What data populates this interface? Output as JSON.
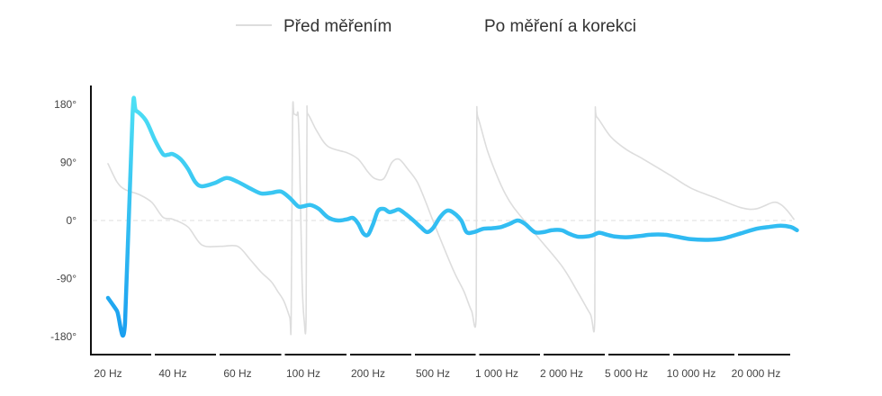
{
  "chart_data": {
    "type": "line",
    "title": "",
    "xlabel": "",
    "ylabel": "",
    "x_scale": "log",
    "x_ticks": [
      {
        "value": 20,
        "label": "20 Hz"
      },
      {
        "value": 40,
        "label": "40 Hz"
      },
      {
        "value": 60,
        "label": "60 Hz"
      },
      {
        "value": 100,
        "label": "100 Hz"
      },
      {
        "value": 200,
        "label": "200 Hz"
      },
      {
        "value": 500,
        "label": "500 Hz"
      },
      {
        "value": 1000,
        "label": "1 000 Hz"
      },
      {
        "value": 2000,
        "label": "2 000 Hz"
      },
      {
        "value": 5000,
        "label": "5 000 Hz"
      },
      {
        "value": 10000,
        "label": "10 000 Hz"
      },
      {
        "value": 20000,
        "label": "20 000 Hz"
      }
    ],
    "y_ticks": [
      {
        "value": 180,
        "label": "180°"
      },
      {
        "value": 90,
        "label": "90°"
      },
      {
        "value": 0,
        "label": "0°"
      },
      {
        "value": -90,
        "label": "-90°"
      },
      {
        "value": -180,
        "label": "-180°"
      }
    ],
    "ylim": [
      -200,
      200
    ],
    "zero_line": "dashed",
    "legend_position": "top-center",
    "series": [
      {
        "name": "Před měřením",
        "color": "#dddddd",
        "style": "thin",
        "points": [
          [
            20,
            88
          ],
          [
            22,
            60
          ],
          [
            24,
            48
          ],
          [
            28,
            40
          ],
          [
            32,
            28
          ],
          [
            36,
            5
          ],
          [
            40,
            2
          ],
          [
            44,
            -10
          ],
          [
            48,
            -38
          ],
          [
            54,
            -40
          ],
          [
            60,
            -40
          ],
          [
            66,
            -60
          ],
          [
            72,
            -80
          ],
          [
            78,
            -95
          ],
          [
            82,
            -110
          ],
          [
            86,
            -125
          ],
          [
            90,
            -150
          ],
          [
            91,
            -155
          ],
          [
            92,
            160
          ],
          [
            93,
            165
          ],
          [
            95,
            163
          ],
          [
            96,
            165
          ],
          [
            97,
            110
          ],
          [
            99,
            -90
          ],
          [
            101,
            -155
          ],
          [
            103,
            -150
          ],
          [
            104,
            150
          ],
          [
            105,
            165
          ],
          [
            115,
            140
          ],
          [
            130,
            115
          ],
          [
            160,
            105
          ],
          [
            180,
            95
          ],
          [
            200,
            75
          ],
          [
            220,
            65
          ],
          [
            250,
            65
          ],
          [
            280,
            90
          ],
          [
            310,
            95
          ],
          [
            350,
            80
          ],
          [
            400,
            60
          ],
          [
            450,
            30
          ],
          [
            500,
            0
          ],
          [
            560,
            -40
          ],
          [
            630,
            -80
          ],
          [
            700,
            -110
          ],
          [
            760,
            -140
          ],
          [
            800,
            -145
          ],
          [
            805,
            150
          ],
          [
            815,
            160
          ],
          [
            900,
            110
          ],
          [
            1000,
            70
          ],
          [
            1100,
            40
          ],
          [
            1200,
            20
          ],
          [
            1500,
            -20
          ],
          [
            2000,
            -70
          ],
          [
            2500,
            -110
          ],
          [
            3000,
            -145
          ],
          [
            3200,
            -152
          ],
          [
            3220,
            150
          ],
          [
            3300,
            160
          ],
          [
            4000,
            130
          ],
          [
            5000,
            110
          ],
          [
            6000,
            95
          ],
          [
            8000,
            70
          ],
          [
            10000,
            50
          ],
          [
            13000,
            35
          ],
          [
            17000,
            20
          ],
          [
            20000,
            18
          ],
          [
            24000,
            28
          ],
          [
            26000,
            25
          ],
          [
            28000,
            15
          ],
          [
            30000,
            2
          ]
        ]
      },
      {
        "name": "Po měření a korekci",
        "color_start": "#1a9ff0",
        "color_end": "#4ee0f4",
        "style": "thick",
        "points": [
          [
            20,
            -120
          ],
          [
            22,
            -140
          ],
          [
            24,
            -160
          ],
          [
            26,
            165
          ],
          [
            27,
            170
          ],
          [
            30,
            155
          ],
          [
            33,
            125
          ],
          [
            36,
            103
          ],
          [
            38,
            102
          ],
          [
            40,
            103
          ],
          [
            42,
            95
          ],
          [
            44,
            80
          ],
          [
            46,
            60
          ],
          [
            48,
            53
          ],
          [
            52,
            58
          ],
          [
            56,
            66
          ],
          [
            60,
            60
          ],
          [
            66,
            50
          ],
          [
            72,
            42
          ],
          [
            78,
            43
          ],
          [
            84,
            45
          ],
          [
            90,
            35
          ],
          [
            96,
            22
          ],
          [
            100,
            22
          ],
          [
            108,
            24
          ],
          [
            118,
            18
          ],
          [
            130,
            5
          ],
          [
            145,
            0
          ],
          [
            160,
            2
          ],
          [
            170,
            4
          ],
          [
            180,
            -5
          ],
          [
            190,
            -20
          ],
          [
            200,
            -22
          ],
          [
            215,
            -5
          ],
          [
            230,
            15
          ],
          [
            250,
            18
          ],
          [
            270,
            13
          ],
          [
            290,
            15
          ],
          [
            310,
            17
          ],
          [
            340,
            10
          ],
          [
            380,
            0
          ],
          [
            420,
            -10
          ],
          [
            460,
            -18
          ],
          [
            500,
            -12
          ],
          [
            540,
            5
          ],
          [
            580,
            15
          ],
          [
            620,
            13
          ],
          [
            680,
            0
          ],
          [
            720,
            -18
          ],
          [
            780,
            -18
          ],
          [
            860,
            -13
          ],
          [
            950,
            -12
          ],
          [
            1050,
            -10
          ],
          [
            1150,
            -5
          ],
          [
            1250,
            0
          ],
          [
            1350,
            -5
          ],
          [
            1500,
            -18
          ],
          [
            1650,
            -18
          ],
          [
            1800,
            -15
          ],
          [
            2000,
            -15
          ],
          [
            2200,
            -20
          ],
          [
            2500,
            -25
          ],
          [
            2800,
            -25
          ],
          [
            3100,
            -23
          ],
          [
            3400,
            -19
          ],
          [
            3800,
            -22
          ],
          [
            4300,
            -25
          ],
          [
            5000,
            -26
          ],
          [
            5800,
            -24
          ],
          [
            6500,
            -22
          ],
          [
            7500,
            -22
          ],
          [
            8500,
            -25
          ],
          [
            10000,
            -29
          ],
          [
            12000,
            -30
          ],
          [
            14000,
            -28
          ],
          [
            17000,
            -20
          ],
          [
            20000,
            -13
          ],
          [
            23000,
            -10
          ],
          [
            26000,
            -8
          ],
          [
            29000,
            -10
          ],
          [
            31000,
            -15
          ]
        ]
      }
    ]
  }
}
